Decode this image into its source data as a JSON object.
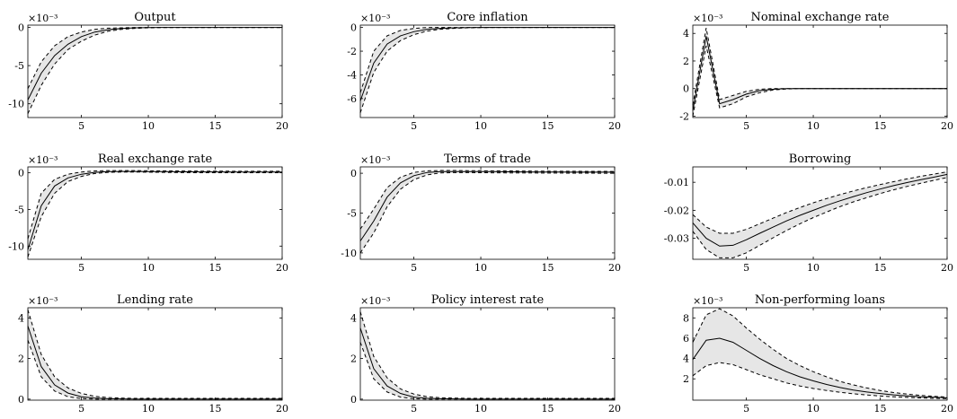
{
  "chart_data": [
    {
      "type": "line",
      "title": "Output",
      "exponent": "×10⁻³",
      "xlim": [
        1,
        20
      ],
      "ylim": [
        -11.8,
        0.3
      ],
      "xticks": [
        5,
        10,
        15,
        20
      ],
      "yticks": [
        0,
        -5,
        -10
      ],
      "x": [
        1,
        2,
        3,
        4,
        5,
        6,
        7,
        8,
        9,
        10,
        11,
        12,
        13,
        14,
        15,
        16,
        17,
        18,
        19,
        20
      ],
      "median": [
        -9.5,
        -6.0,
        -3.7,
        -2.2,
        -1.2,
        -0.6,
        -0.3,
        -0.15,
        -0.05,
        -0.02,
        0,
        0,
        0,
        0,
        0,
        0,
        0,
        0,
        0,
        0
      ],
      "upper": [
        -8.0,
        -4.5,
        -2.4,
        -1.2,
        -0.6,
        -0.25,
        -0.1,
        -0.05,
        0,
        0,
        0,
        0,
        0,
        0,
        0,
        0,
        0,
        0,
        0,
        0
      ],
      "lower": [
        -11.3,
        -7.6,
        -4.8,
        -2.9,
        -1.8,
        -1.0,
        -0.5,
        -0.25,
        -0.12,
        -0.05,
        -0.02,
        0,
        0,
        0,
        0,
        0,
        0,
        0,
        0,
        0
      ]
    },
    {
      "type": "line",
      "title": "Core inflation",
      "exponent": "×10⁻³",
      "xlim": [
        1,
        20
      ],
      "ylim": [
        -7.6,
        0.2
      ],
      "xticks": [
        5,
        10,
        15,
        20
      ],
      "yticks": [
        0,
        -2,
        -4,
        -6
      ],
      "x": [
        1,
        2,
        3,
        4,
        5,
        6,
        7,
        8,
        9,
        10,
        11,
        12,
        13,
        14,
        15,
        16,
        17,
        18,
        19,
        20
      ],
      "median": [
        -6.2,
        -3.0,
        -1.4,
        -0.7,
        -0.35,
        -0.15,
        -0.07,
        -0.03,
        -0.01,
        0,
        0,
        0,
        0,
        0,
        0,
        0,
        0,
        0,
        0,
        0
      ],
      "upper": [
        -5.5,
        -2.0,
        -0.7,
        -0.25,
        -0.08,
        0,
        0,
        0,
        0,
        0,
        0,
        0,
        0,
        0,
        0,
        0,
        0,
        0,
        0,
        0
      ],
      "lower": [
        -7.2,
        -3.8,
        -2.0,
        -1.1,
        -0.6,
        -0.3,
        -0.15,
        -0.07,
        -0.03,
        -0.01,
        0,
        0,
        0,
        0,
        0,
        0,
        0,
        0,
        0,
        0
      ]
    },
    {
      "type": "line",
      "title": "Nominal exchange rate",
      "exponent": "×10⁻³",
      "xlim": [
        1,
        20
      ],
      "ylim": [
        -2.1,
        4.6
      ],
      "xticks": [
        5,
        10,
        15,
        20
      ],
      "yticks": [
        4,
        2,
        0,
        -2
      ],
      "x": [
        1,
        2,
        3,
        4,
        5,
        6,
        7,
        8,
        9,
        10,
        11,
        12,
        13,
        14,
        15,
        16,
        17,
        18,
        19,
        20
      ],
      "median": [
        -1.6,
        3.8,
        -1.1,
        -0.8,
        -0.4,
        -0.15,
        -0.05,
        0,
        0,
        0,
        0,
        0,
        0,
        0,
        0,
        0,
        0,
        0,
        0,
        0
      ],
      "upper": [
        -1.2,
        4.4,
        -0.8,
        -0.5,
        -0.2,
        -0.05,
        0,
        0,
        0,
        0,
        0,
        0,
        0,
        0,
        0,
        0,
        0,
        0,
        0,
        0
      ],
      "lower": [
        -2.0,
        3.1,
        -1.4,
        -1.1,
        -0.6,
        -0.3,
        -0.1,
        -0.03,
        0,
        0,
        0,
        0,
        0,
        0,
        0,
        0,
        0,
        0,
        0,
        0
      ]
    },
    {
      "type": "line",
      "title": "Real exchange rate",
      "exponent": "×10⁻³",
      "xlim": [
        1,
        20
      ],
      "ylim": [
        -11.8,
        0.8
      ],
      "xticks": [
        5,
        10,
        15,
        20
      ],
      "yticks": [
        0,
        -5,
        -10
      ],
      "x": [
        1,
        2,
        3,
        4,
        5,
        6,
        7,
        8,
        9,
        10,
        11,
        12,
        13,
        14,
        15,
        16,
        17,
        18,
        19,
        20
      ],
      "median": [
        -10.5,
        -4.5,
        -1.8,
        -0.7,
        -0.2,
        0.05,
        0.15,
        0.18,
        0.18,
        0.17,
        0.15,
        0.14,
        0.13,
        0.12,
        0.11,
        0.1,
        0.1,
        0.1,
        0.1,
        0.1
      ],
      "upper": [
        -9.0,
        -2.8,
        -0.9,
        -0.2,
        0.1,
        0.25,
        0.3,
        0.3,
        0.3,
        0.28,
        0.26,
        0.25,
        0.24,
        0.23,
        0.22,
        0.21,
        0.2,
        0.2,
        0.2,
        0.2
      ],
      "lower": [
        -11.5,
        -6.0,
        -2.8,
        -1.2,
        -0.5,
        -0.1,
        0.05,
        0.1,
        0.1,
        0.08,
        0.05,
        0.03,
        0.02,
        0.01,
        0,
        0,
        0,
        0,
        0,
        0
      ]
    },
    {
      "type": "line",
      "title": "Terms of trade",
      "exponent": "×10⁻³",
      "xlim": [
        1,
        20
      ],
      "ylim": [
        -10.8,
        0.8
      ],
      "xticks": [
        5,
        10,
        15,
        20
      ],
      "yticks": [
        0,
        -5,
        -10
      ],
      "x": [
        1,
        2,
        3,
        4,
        5,
        6,
        7,
        8,
        9,
        10,
        11,
        12,
        13,
        14,
        15,
        16,
        17,
        18,
        19,
        20
      ],
      "median": [
        -8.5,
        -6.0,
        -3.0,
        -1.2,
        -0.3,
        0.1,
        0.2,
        0.22,
        0.22,
        0.2,
        0.2,
        0.18,
        0.17,
        0.16,
        0.15,
        0.15,
        0.14,
        0.14,
        0.13,
        0.13
      ],
      "upper": [
        -7.0,
        -4.5,
        -1.8,
        -0.5,
        0.1,
        0.3,
        0.35,
        0.35,
        0.33,
        0.32,
        0.3,
        0.3,
        0.28,
        0.27,
        0.26,
        0.25,
        0.25,
        0.24,
        0.24,
        0.23
      ],
      "lower": [
        -10.0,
        -7.5,
        -4.2,
        -2.0,
        -0.8,
        -0.2,
        0.05,
        0.08,
        0.08,
        0.07,
        0.06,
        0.05,
        0.04,
        0.03,
        0.02,
        0.02,
        0.01,
        0.01,
        0,
        0
      ]
    },
    {
      "type": "line",
      "title": "Borrowing",
      "exponent": "",
      "xlim": [
        1,
        20
      ],
      "ylim": [
        -0.0375,
        -0.0045
      ],
      "xticks": [
        5,
        10,
        15,
        20
      ],
      "yticks": [
        -0.01,
        -0.02,
        -0.03
      ],
      "x": [
        1,
        2,
        3,
        4,
        5,
        6,
        7,
        8,
        9,
        10,
        11,
        12,
        13,
        14,
        15,
        16,
        17,
        18,
        19,
        20
      ],
      "median": [
        -0.0245,
        -0.03,
        -0.0328,
        -0.0325,
        -0.0305,
        -0.0282,
        -0.026,
        -0.0238,
        -0.0218,
        -0.02,
        -0.0182,
        -0.0166,
        -0.0151,
        -0.0137,
        -0.0124,
        -0.0112,
        -0.0101,
        -0.0091,
        -0.0082,
        -0.0072
      ],
      "upper": [
        -0.0215,
        -0.026,
        -0.0282,
        -0.0282,
        -0.0268,
        -0.0248,
        -0.0228,
        -0.0208,
        -0.019,
        -0.0173,
        -0.0158,
        -0.0144,
        -0.0131,
        -0.0119,
        -0.0108,
        -0.0098,
        -0.0088,
        -0.0079,
        -0.0071,
        -0.0063
      ],
      "lower": [
        -0.0275,
        -0.034,
        -0.037,
        -0.037,
        -0.0352,
        -0.0325,
        -0.0298,
        -0.0272,
        -0.0248,
        -0.0226,
        -0.0206,
        -0.0187,
        -0.017,
        -0.0155,
        -0.014,
        -0.0127,
        -0.0115,
        -0.0104,
        -0.0093,
        -0.0083
      ]
    },
    {
      "type": "line",
      "title": "Lending rate",
      "exponent": "×10⁻³",
      "xlim": [
        1,
        20
      ],
      "ylim": [
        -0.05,
        4.5
      ],
      "xticks": [
        5,
        10,
        15,
        20
      ],
      "yticks": [
        4,
        2,
        0
      ],
      "x": [
        1,
        2,
        3,
        4,
        5,
        6,
        7,
        8,
        9,
        10,
        11,
        12,
        13,
        14,
        15,
        16,
        17,
        18,
        19,
        20
      ],
      "median": [
        3.6,
        1.6,
        0.7,
        0.3,
        0.12,
        0.05,
        0.02,
        0.01,
        0,
        0,
        0,
        0,
        0,
        0,
        0,
        0,
        0,
        0,
        0,
        0
      ],
      "upper": [
        4.4,
        2.2,
        1.1,
        0.55,
        0.28,
        0.14,
        0.08,
        0.05,
        0.04,
        0.04,
        0.04,
        0.04,
        0.04,
        0.04,
        0.04,
        0.04,
        0.04,
        0.04,
        0.04,
        0.04
      ],
      "lower": [
        2.9,
        1.1,
        0.4,
        0.12,
        0.03,
        0,
        0,
        0,
        0,
        0,
        0,
        0,
        0,
        0,
        0,
        0,
        0,
        0,
        0,
        0
      ]
    },
    {
      "type": "line",
      "title": "Policy interest rate",
      "exponent": "×10⁻³",
      "xlim": [
        1,
        20
      ],
      "ylim": [
        -0.05,
        4.5
      ],
      "xticks": [
        5,
        10,
        15,
        20
      ],
      "yticks": [
        4,
        2,
        0
      ],
      "x": [
        1,
        2,
        3,
        4,
        5,
        6,
        7,
        8,
        9,
        10,
        11,
        12,
        13,
        14,
        15,
        16,
        17,
        18,
        19,
        20
      ],
      "median": [
        3.5,
        1.5,
        0.65,
        0.28,
        0.1,
        0.04,
        0.02,
        0.01,
        0,
        0,
        0,
        0,
        0,
        0,
        0,
        0,
        0,
        0,
        0,
        0
      ],
      "upper": [
        4.3,
        2.1,
        1.05,
        0.5,
        0.25,
        0.12,
        0.07,
        0.05,
        0.04,
        0.04,
        0.04,
        0.04,
        0.04,
        0.04,
        0.04,
        0.04,
        0.04,
        0.04,
        0.04,
        0.04
      ],
      "lower": [
        2.8,
        1.0,
        0.35,
        0.1,
        0.02,
        0,
        0,
        0,
        0,
        0,
        0,
        0,
        0,
        0,
        0,
        0,
        0,
        0,
        0,
        0
      ]
    },
    {
      "type": "line",
      "title": "Non-performing loans",
      "exponent": "×10⁻³",
      "xlim": [
        1,
        20
      ],
      "ylim": [
        -0.1,
        9.0
      ],
      "xticks": [
        5,
        10,
        15,
        20
      ],
      "yticks": [
        8,
        6,
        4,
        2
      ],
      "x": [
        1,
        2,
        3,
        4,
        5,
        6,
        7,
        8,
        9,
        10,
        11,
        12,
        13,
        14,
        15,
        16,
        17,
        18,
        19,
        20
      ],
      "median": [
        3.9,
        5.8,
        6.0,
        5.6,
        4.8,
        4.0,
        3.3,
        2.7,
        2.2,
        1.8,
        1.45,
        1.15,
        0.9,
        0.7,
        0.55,
        0.42,
        0.32,
        0.24,
        0.18,
        0.13
      ],
      "upper": [
        5.6,
        8.3,
        8.9,
        8.2,
        7.0,
        5.9,
        4.9,
        4.0,
        3.3,
        2.7,
        2.2,
        1.75,
        1.4,
        1.1,
        0.85,
        0.65,
        0.5,
        0.38,
        0.28,
        0.2
      ],
      "lower": [
        2.3,
        3.3,
        3.6,
        3.4,
        2.9,
        2.4,
        2.0,
        1.6,
        1.3,
        1.05,
        0.85,
        0.68,
        0.53,
        0.41,
        0.31,
        0.23,
        0.17,
        0.12,
        0.08,
        0.05
      ]
    }
  ]
}
